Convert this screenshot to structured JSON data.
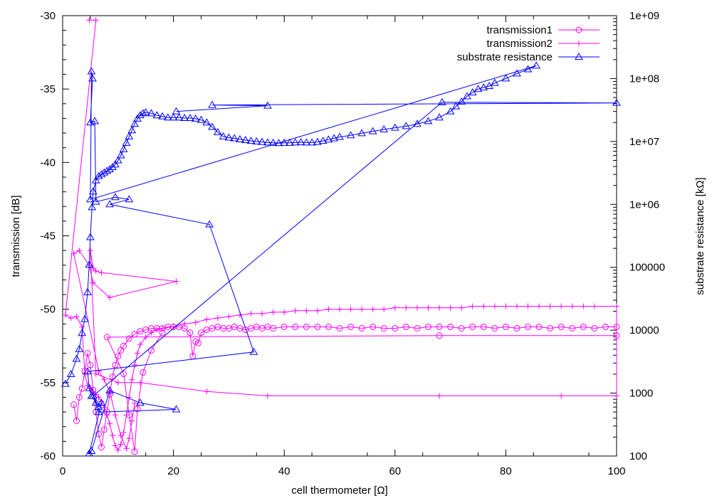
{
  "chart_data": {
    "type": "line",
    "title": "",
    "xlabel": "cell thermometer [Ω]",
    "ylabel": "transmission [dB]",
    "y2label": "substrate resistance [kΩ]",
    "xlim": [
      0,
      100
    ],
    "ylim": [
      -60,
      -30
    ],
    "y2lim": [
      100,
      1000000000
    ],
    "y2scale": "log",
    "grid": false,
    "legend_position": "top-right",
    "x_ticks": [
      "0",
      "20",
      "40",
      "60",
      "80",
      "100"
    ],
    "y_ticks": [
      "-60",
      "-55",
      "-50",
      "-45",
      "-40",
      "-35",
      "-30"
    ],
    "y2_ticks": [
      "100",
      "1000",
      "10000",
      "100000",
      "1e+06",
      "1e+07",
      "1e+08",
      "1e+09"
    ],
    "series": [
      {
        "name": "transmission1",
        "axis": "y",
        "color": "#ff00ff",
        "marker": "circle",
        "points": [
          [
            2.0,
            -56.5
          ],
          [
            2.5,
            -57.6
          ],
          [
            3.0,
            -56.0
          ],
          [
            3.5,
            -55.4
          ],
          [
            4.0,
            -54.2
          ],
          [
            4.5,
            -53.0
          ],
          [
            5.0,
            -53.8
          ],
          [
            5.5,
            -55.5
          ],
          [
            6.0,
            -57.0
          ],
          [
            6.5,
            -58.5
          ],
          [
            7.0,
            -59.4
          ],
          [
            7.5,
            -58.2
          ],
          [
            8.0,
            -57.0
          ],
          [
            8.5,
            -55.8
          ],
          [
            9.0,
            -54.6
          ],
          [
            9.5,
            -53.8
          ],
          [
            10.0,
            -53.2
          ],
          [
            10.5,
            -52.8
          ],
          [
            11.0,
            -52.5
          ],
          [
            12.0,
            -52.0
          ],
          [
            13.0,
            -51.7
          ],
          [
            14.0,
            -51.5
          ],
          [
            15.0,
            -51.4
          ],
          [
            16.0,
            -51.3
          ],
          [
            17.0,
            -51.3
          ],
          [
            18.0,
            -51.3
          ],
          [
            19.0,
            -51.2
          ],
          [
            20.0,
            -51.2
          ],
          [
            21.0,
            -51.2
          ],
          [
            22.0,
            -51.3
          ],
          [
            23.0,
            -51.6
          ],
          [
            23.5,
            -53.2
          ],
          [
            24.0,
            -52.2
          ],
          [
            24.5,
            -52.3
          ],
          [
            25.0,
            -51.6
          ],
          [
            26.0,
            -51.4
          ],
          [
            27.0,
            -51.3
          ],
          [
            28.0,
            -51.2
          ],
          [
            29.0,
            -51.3
          ],
          [
            30.0,
            -51.3
          ],
          [
            31.0,
            -51.2
          ],
          [
            32.0,
            -51.3
          ],
          [
            33.0,
            -51.4
          ],
          [
            34.0,
            -51.3
          ],
          [
            35.0,
            -51.2
          ],
          [
            36.0,
            -51.3
          ],
          [
            37.0,
            -51.2
          ],
          [
            38.0,
            -51.3
          ],
          [
            40.0,
            -51.2
          ],
          [
            42.0,
            -51.2
          ],
          [
            44.0,
            -51.2
          ],
          [
            46.0,
            -51.2
          ],
          [
            48.0,
            -51.2
          ],
          [
            50.0,
            -51.3
          ],
          [
            52.0,
            -51.2
          ],
          [
            54.0,
            -51.3
          ],
          [
            56.0,
            -51.2
          ],
          [
            58.0,
            -51.3
          ],
          [
            60.0,
            -51.3
          ],
          [
            62.0,
            -51.2
          ],
          [
            64.0,
            -51.3
          ],
          [
            66.0,
            -51.2
          ],
          [
            68.0,
            -51.2
          ],
          [
            70.0,
            -51.2
          ],
          [
            72.0,
            -51.3
          ],
          [
            74.0,
            -51.2
          ],
          [
            76.0,
            -51.2
          ],
          [
            78.0,
            -51.3
          ],
          [
            80.0,
            -51.2
          ],
          [
            82.0,
            -51.3
          ],
          [
            84.0,
            -51.2
          ],
          [
            86.0,
            -51.2
          ],
          [
            88.0,
            -51.3
          ],
          [
            90.0,
            -51.2
          ],
          [
            92.0,
            -51.3
          ],
          [
            94.0,
            -51.2
          ],
          [
            96.0,
            -51.3
          ],
          [
            98.0,
            -51.2
          ],
          [
            100.0,
            -51.2
          ],
          [
            100.0,
            -51.8
          ],
          [
            68.0,
            -51.8
          ],
          [
            8.0,
            -51.9
          ],
          [
            11.0,
            -54.4
          ],
          [
            12.0,
            -57.2
          ],
          [
            13.0,
            -59.7
          ],
          [
            13.5,
            -56.8
          ],
          [
            14.5,
            -54.3
          ],
          [
            16.0,
            -52.8
          ],
          [
            18.0,
            -51.6
          ]
        ]
      },
      {
        "name": "transmission2",
        "axis": "y",
        "color": "#ff00ff",
        "marker": "plus",
        "points": [
          [
            4.8,
            -30.3
          ],
          [
            6.0,
            -30.3
          ],
          [
            0.5,
            -50.4
          ],
          [
            1.5,
            -50.6
          ],
          [
            2.5,
            -50.5
          ],
          [
            3.5,
            -51.2
          ],
          [
            4.0,
            -54.4
          ],
          [
            4.5,
            -55.2
          ],
          [
            5.0,
            -55.4
          ],
          [
            5.5,
            -55.6
          ],
          [
            6.0,
            -55.8
          ],
          [
            6.5,
            -56.0
          ],
          [
            7.0,
            -56.3
          ],
          [
            7.5,
            -56.7
          ],
          [
            8.0,
            -57.2
          ],
          [
            8.5,
            -57.8
          ],
          [
            9.0,
            -58.6
          ],
          [
            9.5,
            -59.3
          ],
          [
            10.0,
            -59.6
          ],
          [
            10.5,
            -59.2
          ],
          [
            11.0,
            -58.4
          ],
          [
            11.5,
            -57.2
          ],
          [
            12.0,
            -56.0
          ],
          [
            12.5,
            -54.8
          ],
          [
            13.0,
            -53.8
          ],
          [
            13.5,
            -53.0
          ],
          [
            14.0,
            -52.4
          ],
          [
            15.0,
            -51.9
          ],
          [
            16.0,
            -51.6
          ],
          [
            17.0,
            -51.4
          ],
          [
            18.0,
            -51.3
          ],
          [
            20.0,
            -51.2
          ],
          [
            22.0,
            -51.0
          ],
          [
            24.0,
            -50.9
          ],
          [
            26.0,
            -50.7
          ],
          [
            28.0,
            -50.6
          ],
          [
            30.0,
            -50.5
          ],
          [
            32.0,
            -50.4
          ],
          [
            34.0,
            -50.3
          ],
          [
            36.0,
            -50.3
          ],
          [
            38.0,
            -50.2
          ],
          [
            40.0,
            -50.2
          ],
          [
            42.0,
            -50.1
          ],
          [
            44.0,
            -50.1
          ],
          [
            46.0,
            -50.1
          ],
          [
            48.0,
            -50.0
          ],
          [
            50.0,
            -50.0
          ],
          [
            52.0,
            -50.0
          ],
          [
            54.0,
            -50.0
          ],
          [
            56.0,
            -50.0
          ],
          [
            58.0,
            -50.0
          ],
          [
            60.0,
            -49.9
          ],
          [
            62.0,
            -49.9
          ],
          [
            64.0,
            -49.9
          ],
          [
            66.0,
            -49.9
          ],
          [
            68.0,
            -49.9
          ],
          [
            70.0,
            -49.9
          ],
          [
            72.0,
            -49.9
          ],
          [
            74.0,
            -49.8
          ],
          [
            76.0,
            -49.8
          ],
          [
            78.0,
            -49.8
          ],
          [
            80.0,
            -49.8
          ],
          [
            82.0,
            -49.8
          ],
          [
            84.0,
            -49.8
          ],
          [
            86.0,
            -49.8
          ],
          [
            88.0,
            -49.8
          ],
          [
            90.0,
            -49.8
          ],
          [
            92.0,
            -49.8
          ],
          [
            94.0,
            -49.8
          ],
          [
            96.0,
            -49.8
          ],
          [
            100.0,
            -49.8
          ],
          [
            100.0,
            -55.9
          ],
          [
            90.0,
            -55.9
          ],
          [
            68.0,
            -55.9
          ],
          [
            37.0,
            -55.9
          ],
          [
            26.0,
            -55.6
          ],
          [
            14.0,
            -55.0
          ],
          [
            10.0,
            -55.0
          ],
          [
            6.0,
            -54.4
          ],
          [
            5.0,
            -46.0
          ],
          [
            5.5,
            -47.2
          ],
          [
            6.0,
            -47.4
          ],
          [
            7.0,
            -47.5
          ],
          [
            20.5,
            -48.1
          ],
          [
            8.5,
            -49.2
          ],
          [
            5.5,
            -48.2
          ],
          [
            4.8,
            -47.0
          ],
          [
            3.0,
            -46.0
          ],
          [
            2.0,
            -46.2
          ],
          [
            6.5,
            -54.2
          ],
          [
            7.5,
            -54.8
          ],
          [
            8.5,
            -55.6
          ],
          [
            9.5,
            -57.2
          ],
          [
            10.5,
            -58.6
          ],
          [
            11.5,
            -59.5
          ],
          [
            12.0,
            -58.8
          ],
          [
            12.5,
            -57.6
          ],
          [
            13.0,
            -56.4
          ]
        ]
      },
      {
        "name": "substrate resistance",
        "axis": "y2",
        "color": "#0000ff",
        "marker": "triangle",
        "points": [
          [
            0.5,
            1400
          ],
          [
            1.5,
            2000
          ],
          [
            2.5,
            3500
          ],
          [
            3.0,
            5000
          ],
          [
            3.5,
            9000
          ],
          [
            4.0,
            15000
          ],
          [
            4.5,
            40000
          ],
          [
            4.8,
            110000
          ],
          [
            5.0,
            300000
          ],
          [
            5.3,
            900000
          ],
          [
            5.5,
            1600000
          ],
          [
            6.0,
            2400000
          ],
          [
            6.5,
            2800000
          ],
          [
            7.0,
            3000000
          ],
          [
            7.5,
            3200000
          ],
          [
            8.0,
            3400000
          ],
          [
            8.5,
            3600000
          ],
          [
            9.0,
            3900000
          ],
          [
            9.5,
            4300000
          ],
          [
            10.0,
            5000000
          ],
          [
            10.5,
            6000000
          ],
          [
            11.0,
            7500000
          ],
          [
            11.5,
            9500000
          ],
          [
            12.0,
            12000000
          ],
          [
            12.5,
            15000000
          ],
          [
            13.0,
            19000000
          ],
          [
            13.5,
            23000000
          ],
          [
            14.0,
            26000000
          ],
          [
            14.5,
            28000000
          ],
          [
            15.0,
            29000000
          ],
          [
            16.0,
            28000000
          ],
          [
            17.0,
            26000000
          ],
          [
            18.0,
            25000000
          ],
          [
            19.0,
            24000000
          ],
          [
            20.0,
            24000000
          ],
          [
            21.0,
            24000000
          ],
          [
            22.0,
            23500000
          ],
          [
            23.0,
            23500000
          ],
          [
            24.0,
            23000000
          ],
          [
            25.0,
            22000000
          ],
          [
            26.0,
            20000000
          ],
          [
            27.0,
            17000000
          ],
          [
            28.0,
            14000000
          ],
          [
            29.0,
            12000000
          ],
          [
            30.0,
            11500000
          ],
          [
            31.0,
            11200000
          ],
          [
            32.0,
            10800000
          ],
          [
            33.0,
            10500000
          ],
          [
            34.0,
            10200000
          ],
          [
            35.0,
            10000000
          ],
          [
            36.0,
            9800000
          ],
          [
            37.0,
            9600000
          ],
          [
            38.0,
            9500000
          ],
          [
            39.0,
            9400000
          ],
          [
            40.0,
            9500000
          ],
          [
            41.0,
            9500000
          ],
          [
            42.0,
            9600000
          ],
          [
            43.0,
            9700000
          ],
          [
            44.0,
            9600000
          ],
          [
            45.0,
            9600000
          ],
          [
            46.0,
            9800000
          ],
          [
            47.0,
            10200000
          ],
          [
            48.0,
            10700000
          ],
          [
            49.0,
            11200000
          ],
          [
            50.0,
            11800000
          ],
          [
            52.0,
            12500000
          ],
          [
            54.0,
            13500000
          ],
          [
            56.0,
            14500000
          ],
          [
            58.0,
            15500000
          ],
          [
            60.0,
            16500000
          ],
          [
            62.0,
            17500000
          ],
          [
            64.0,
            19000000
          ],
          [
            66.0,
            21000000
          ],
          [
            68.0,
            24000000
          ],
          [
            70.0,
            30000000
          ],
          [
            71.0,
            36000000
          ],
          [
            72.0,
            43000000
          ],
          [
            73.0,
            52000000
          ],
          [
            74.0,
            60000000
          ],
          [
            75.0,
            68000000
          ],
          [
            76.0,
            72000000
          ],
          [
            77.0,
            76000000
          ],
          [
            78.0,
            85000000
          ],
          [
            80.0,
            100000000
          ],
          [
            82.0,
            120000000
          ],
          [
            84.0,
            140000000
          ],
          [
            85.5,
            160000000
          ],
          [
            5.0,
            1200000
          ],
          [
            5.2,
            130000000
          ],
          [
            5.4,
            100000000
          ],
          [
            5.0,
            20000000
          ],
          [
            5.8,
            21000000
          ],
          [
            6.0,
            1100000
          ],
          [
            9.5,
            1300000
          ],
          [
            12.0,
            1200000
          ],
          [
            8.5,
            1000000
          ],
          [
            26.5,
            480000
          ],
          [
            34.5,
            4500
          ],
          [
            4.5,
            2200
          ],
          [
            4.8,
            1200
          ],
          [
            5.2,
            900
          ],
          [
            6.0,
            700
          ],
          [
            6.5,
            500
          ],
          [
            20.5,
            550
          ],
          [
            14.0,
            700
          ],
          [
            8.5,
            1100
          ],
          [
            5.2,
            120
          ],
          [
            4.8,
            110
          ],
          [
            7.0,
            700
          ],
          [
            6.5,
            600
          ],
          [
            5.5,
            900
          ],
          [
            68.5,
            42000000
          ],
          [
            100.0,
            41000000
          ],
          [
            27.0,
            38000000
          ],
          [
            37.0,
            37000000
          ],
          [
            20.5,
            30000000
          ]
        ]
      }
    ]
  }
}
